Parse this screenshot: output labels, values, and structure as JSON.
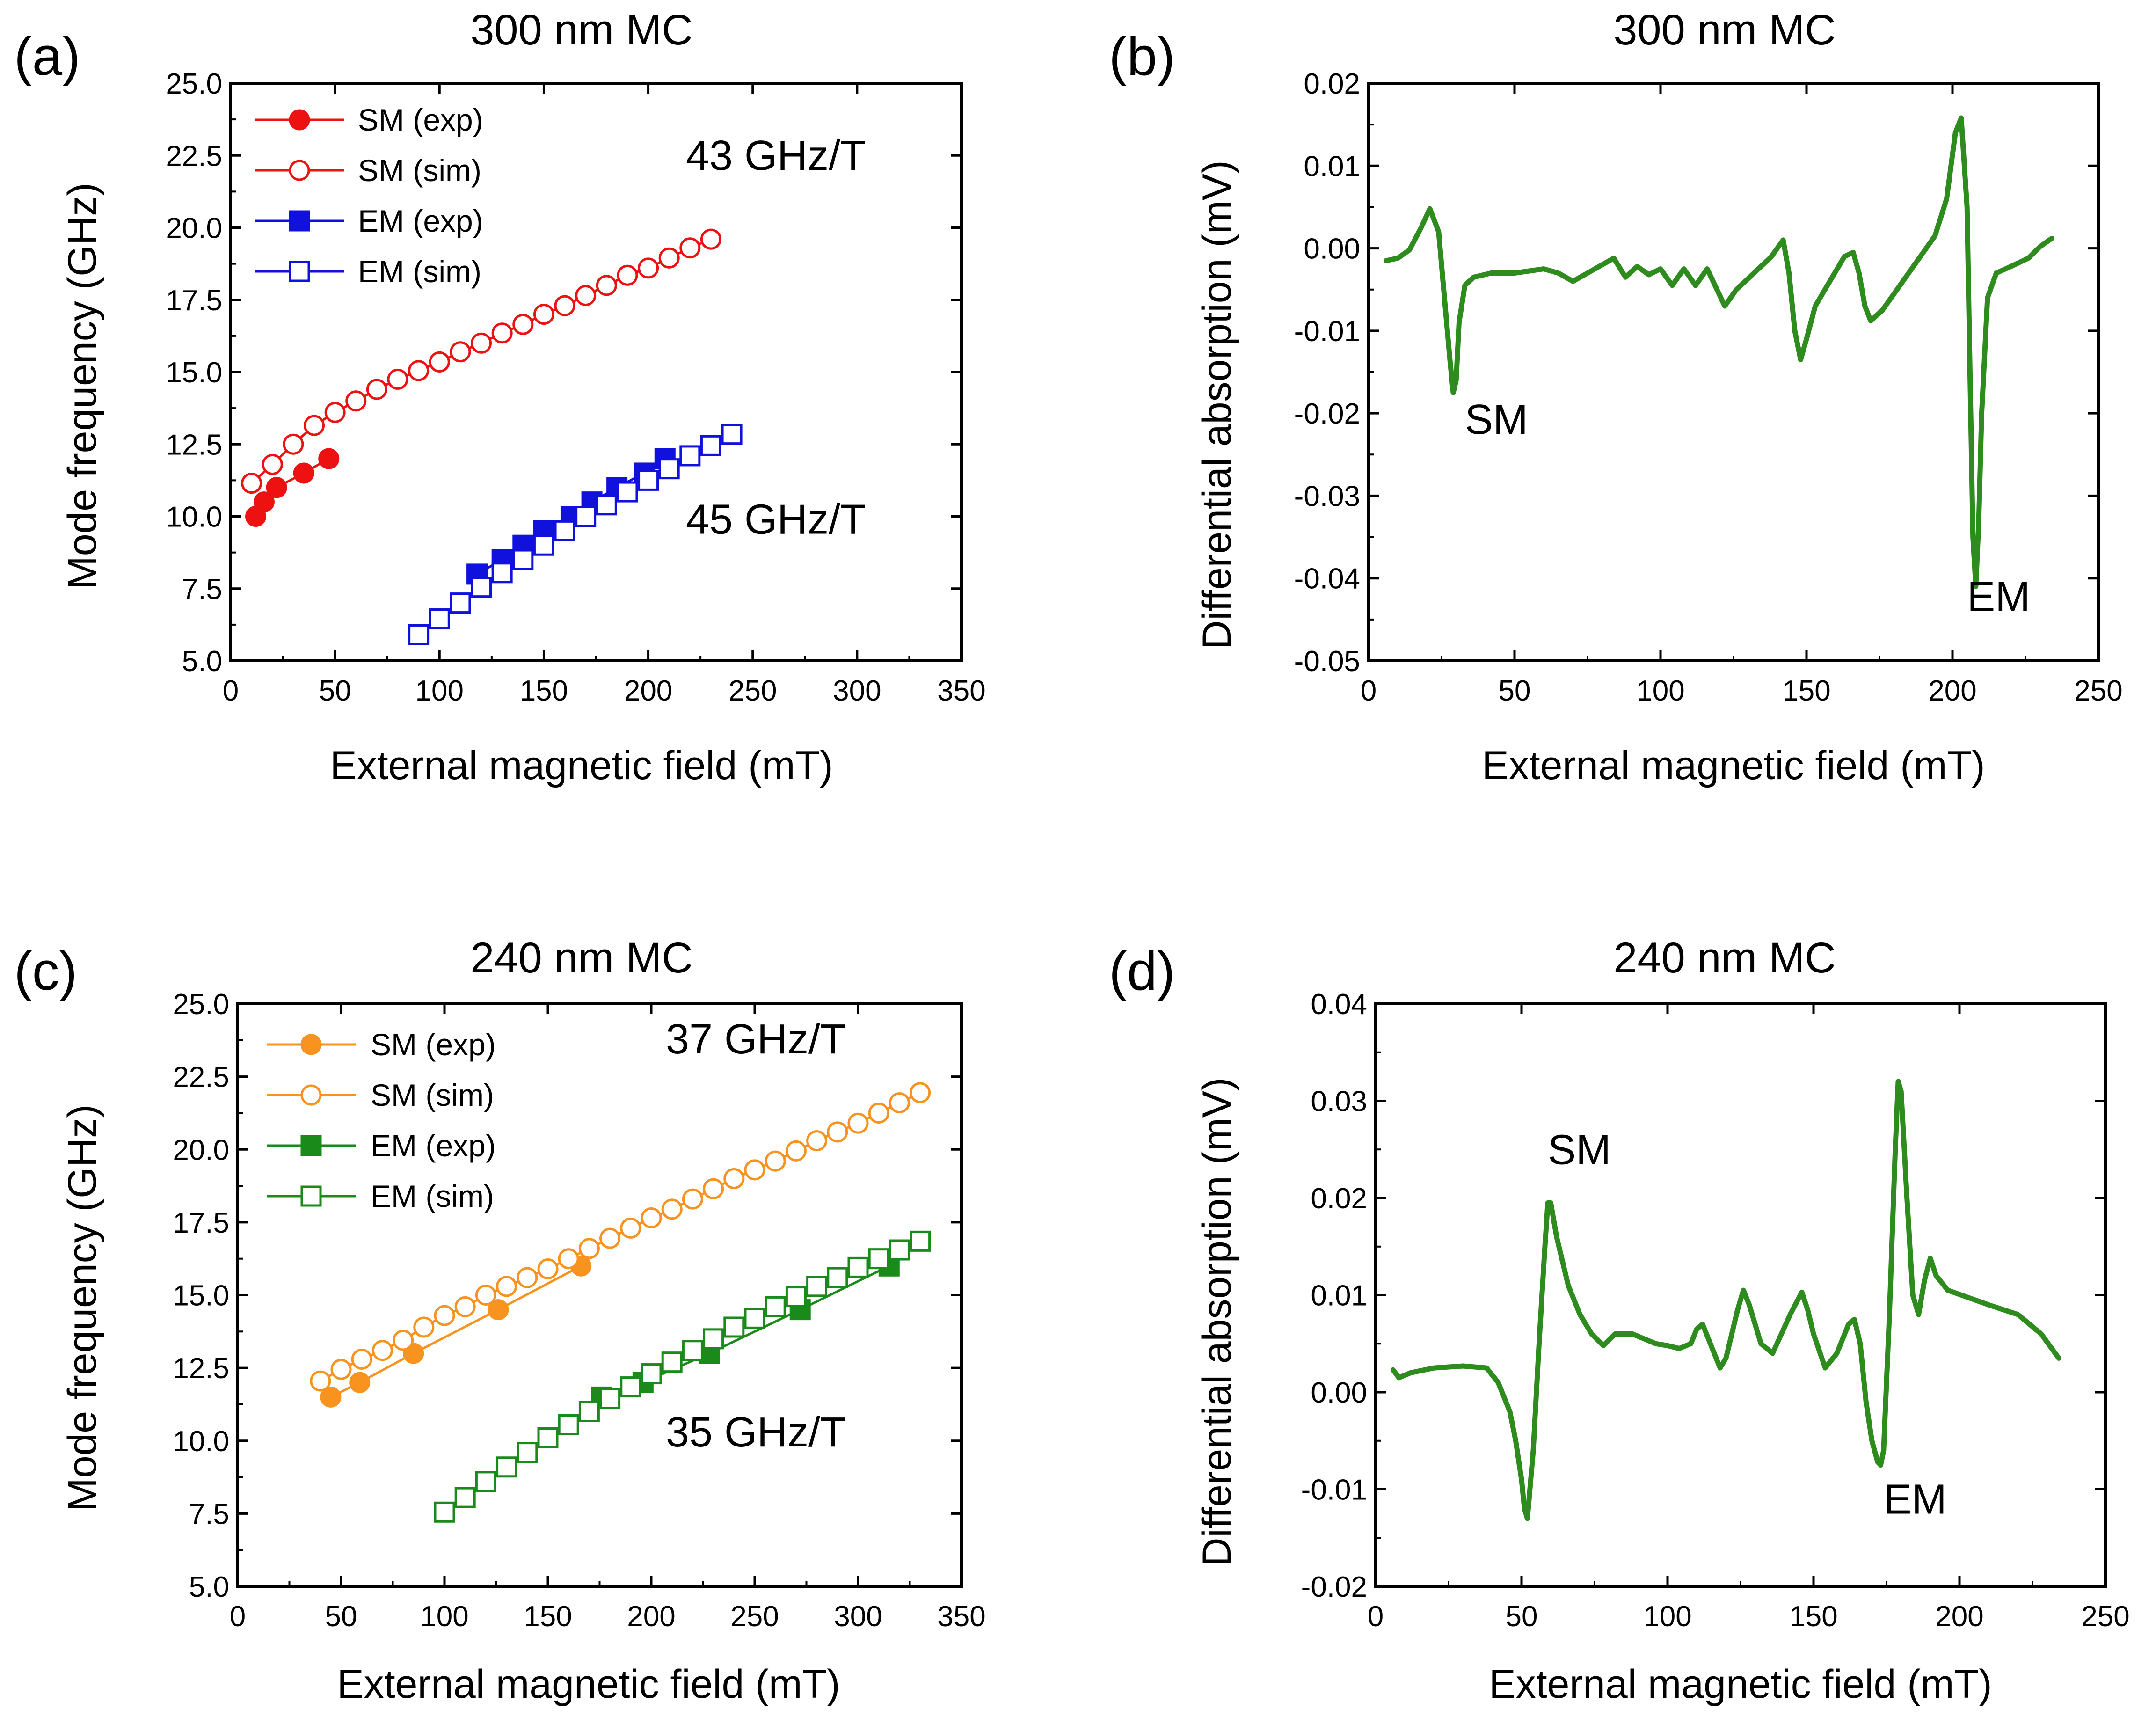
{
  "figure": {
    "colors": {
      "sm_a": "#ee1111",
      "em_a": "#1111dd",
      "sm_c": "#f7931e",
      "em_c": "#1a8a1a",
      "absorption": "#2e8b1e"
    }
  },
  "chart_data": [
    {
      "id": "a",
      "type": "scatter",
      "panel_label": "(a)",
      "title": "300 nm MC",
      "xlabel": "External magnetic field (mT)",
      "ylabel": "Mode frequency (GHz)",
      "xlim": [
        0,
        350
      ],
      "ylim": [
        5.0,
        25.0
      ],
      "xticks": [
        0,
        50,
        100,
        150,
        200,
        250,
        300,
        350
      ],
      "xtick_labels": [
        "0",
        "50",
        "100",
        "150",
        "200",
        "250",
        "300",
        "350"
      ],
      "yticks": [
        5.0,
        7.5,
        10.0,
        12.5,
        15.0,
        17.5,
        20.0,
        22.5,
        25.0
      ],
      "ytick_labels": [
        "5.0",
        "7.5",
        "10.0",
        "12.5",
        "15.0",
        "17.5",
        "20.0",
        "22.5",
        "25.0"
      ],
      "legend_position": "top-left",
      "series": [
        {
          "name": "SM (exp)",
          "color": "#ee1111",
          "marker": "circle",
          "filled": true,
          "x": [
            12,
            16,
            22,
            35,
            47
          ],
          "y": [
            10.0,
            10.5,
            11.0,
            11.5,
            12.0
          ]
        },
        {
          "name": "SM (sim)",
          "color": "#ee1111",
          "marker": "circle",
          "filled": false,
          "x": [
            10,
            20,
            30,
            40,
            50,
            60,
            70,
            80,
            90,
            100,
            110,
            120,
            130,
            140,
            150,
            160,
            170,
            180,
            190,
            200,
            210,
            220,
            230
          ],
          "y": [
            11.15,
            11.8,
            12.5,
            13.15,
            13.6,
            14.0,
            14.4,
            14.75,
            15.05,
            15.35,
            15.7,
            16.0,
            16.35,
            16.65,
            17.0,
            17.3,
            17.65,
            18.0,
            18.35,
            18.6,
            18.95,
            19.3,
            19.6
          ]
        },
        {
          "name": "EM (exp)",
          "color": "#1111dd",
          "marker": "square",
          "filled": true,
          "x": [
            118,
            130,
            140,
            150,
            163,
            173,
            185,
            198,
            208
          ],
          "y": [
            8.0,
            8.5,
            9.0,
            9.5,
            10.0,
            10.5,
            11.0,
            11.5,
            12.0
          ]
        },
        {
          "name": "EM (sim)",
          "color": "#1111dd",
          "marker": "square",
          "filled": false,
          "x": [
            90,
            100,
            110,
            120,
            130,
            140,
            150,
            160,
            170,
            180,
            190,
            200,
            210,
            220,
            230,
            240
          ],
          "y": [
            5.9,
            6.45,
            7.0,
            7.55,
            8.05,
            8.5,
            9.0,
            9.5,
            10.0,
            10.4,
            10.85,
            11.25,
            11.65,
            12.1,
            12.45,
            12.85
          ]
        }
      ],
      "annotations": [
        {
          "text": "43 GHz/T",
          "x": 218,
          "y": 22.0
        },
        {
          "text": "45 GHz/T",
          "x": 218,
          "y": 9.4
        }
      ]
    },
    {
      "id": "b",
      "type": "line",
      "panel_label": "(b)",
      "title": "300 nm MC",
      "xlabel": "External magnetic field (mT)",
      "ylabel": "Differential absorption (mV)",
      "xlim": [
        0,
        250
      ],
      "ylim": [
        -0.05,
        0.02
      ],
      "xticks": [
        0,
        50,
        100,
        150,
        200,
        250
      ],
      "xtick_labels": [
        "0",
        "50",
        "100",
        "150",
        "200",
        "250"
      ],
      "yticks": [
        -0.05,
        -0.04,
        -0.03,
        -0.02,
        -0.01,
        0.0,
        0.01,
        0.02
      ],
      "ytick_labels": [
        "-0.05",
        "-0.04",
        "-0.03",
        "-0.02",
        "-0.01",
        "0.00",
        "0.01",
        "0.02"
      ],
      "series": [
        {
          "name": "Differential absorption",
          "color": "#2e8b1e",
          "x": [
            6,
            10,
            14,
            18,
            21,
            24,
            26,
            28,
            29,
            30,
            31,
            33,
            36,
            42,
            50,
            60,
            65,
            70,
            75,
            80,
            84,
            88,
            92,
            96,
            100,
            104,
            108,
            112,
            116,
            120,
            122,
            126,
            132,
            138,
            142,
            144,
            146,
            148,
            150,
            153,
            158,
            163,
            166,
            168,
            170,
            172,
            176,
            182,
            188,
            194,
            198,
            201,
            203,
            205,
            206,
            207,
            208,
            209,
            210,
            212,
            215,
            220,
            226,
            230,
            234
          ],
          "y": [
            -0.0015,
            -0.0012,
            -0.0002,
            0.0025,
            0.0048,
            0.002,
            -0.006,
            -0.014,
            -0.0175,
            -0.016,
            -0.009,
            -0.0045,
            -0.0035,
            -0.003,
            -0.003,
            -0.0025,
            -0.003,
            -0.004,
            -0.003,
            -0.002,
            -0.0012,
            -0.0035,
            -0.0022,
            -0.0032,
            -0.0025,
            -0.0045,
            -0.0025,
            -0.0045,
            -0.0025,
            -0.0055,
            -0.007,
            -0.005,
            -0.003,
            -0.001,
            0.001,
            -0.003,
            -0.01,
            -0.0135,
            -0.011,
            -0.007,
            -0.004,
            -0.001,
            -0.0005,
            -0.003,
            -0.007,
            -0.0088,
            -0.0075,
            -0.0045,
            -0.0015,
            0.0015,
            0.006,
            0.014,
            0.0158,
            0.005,
            -0.015,
            -0.035,
            -0.041,
            -0.033,
            -0.02,
            -0.006,
            -0.003,
            -0.0022,
            -0.0012,
            0.0002,
            0.0012
          ]
        }
      ],
      "annotations": [
        {
          "text": "SM",
          "x": 33,
          "y": -0.0225
        },
        {
          "text": "EM",
          "x": 205,
          "y": -0.044
        }
      ]
    },
    {
      "id": "c",
      "type": "scatter",
      "panel_label": "(c)",
      "title": "240 nm MC",
      "xlabel": "External magnetic field (mT)",
      "ylabel": "Mode frequency (GHz)",
      "xlim": [
        0,
        350
      ],
      "ylim": [
        5.0,
        25.0
      ],
      "xticks": [
        0,
        50,
        100,
        150,
        200,
        250,
        300,
        350
      ],
      "xtick_labels": [
        "0",
        "50",
        "100",
        "150",
        "200",
        "250",
        "300",
        "350"
      ],
      "yticks": [
        5.0,
        7.5,
        10.0,
        12.5,
        15.0,
        17.5,
        20.0,
        22.5,
        25.0
      ],
      "ytick_labels": [
        "5.0",
        "7.5",
        "10.0",
        "12.5",
        "15.0",
        "17.5",
        "20.0",
        "22.5",
        "25.0"
      ],
      "legend_position": "top-left",
      "series": [
        {
          "name": "SM (exp)",
          "color": "#f7931e",
          "marker": "circle",
          "filled": true,
          "x": [
            45,
            59,
            85,
            126,
            166
          ],
          "y": [
            11.5,
            12.0,
            13.0,
            14.5,
            16.0
          ]
        },
        {
          "name": "SM (sim)",
          "color": "#f7931e",
          "marker": "circle",
          "filled": false,
          "x": [
            40,
            50,
            60,
            70,
            80,
            90,
            100,
            110,
            120,
            130,
            140,
            150,
            160,
            170,
            180,
            190,
            200,
            210,
            220,
            230,
            240,
            250,
            260,
            270,
            280,
            290,
            300,
            310,
            320,
            330
          ],
          "y": [
            12.05,
            12.45,
            12.8,
            13.1,
            13.45,
            13.9,
            14.3,
            14.6,
            15.0,
            15.3,
            15.6,
            15.9,
            16.25,
            16.6,
            16.95,
            17.3,
            17.65,
            17.95,
            18.3,
            18.65,
            19.0,
            19.3,
            19.6,
            19.95,
            20.3,
            20.6,
            20.9,
            21.25,
            21.6,
            21.95
          ]
        },
        {
          "name": "EM (exp)",
          "color": "#1a8a1a",
          "marker": "square",
          "filled": true,
          "x": [
            176,
            196,
            228,
            272,
            315
          ],
          "y": [
            11.5,
            12.0,
            13.0,
            14.5,
            16.0
          ]
        },
        {
          "name": "EM (sim)",
          "color": "#1a8a1a",
          "marker": "square",
          "filled": false,
          "x": [
            100,
            110,
            120,
            130,
            140,
            150,
            160,
            170,
            180,
            190,
            200,
            210,
            220,
            230,
            240,
            250,
            260,
            270,
            280,
            290,
            300,
            310,
            320,
            330
          ],
          "y": [
            7.55,
            8.05,
            8.6,
            9.1,
            9.6,
            10.1,
            10.55,
            11.0,
            11.45,
            11.85,
            12.3,
            12.7,
            13.1,
            13.5,
            13.9,
            14.2,
            14.6,
            14.95,
            15.3,
            15.6,
            15.95,
            16.25,
            16.55,
            16.85
          ]
        }
      ],
      "annotations": [
        {
          "text": "37 GHz/T",
          "x": 207,
          "y": 23.3
        },
        {
          "text": "35 GHz/T",
          "x": 207,
          "y": 9.8
        }
      ]
    },
    {
      "id": "d",
      "type": "line",
      "panel_label": "(d)",
      "title": "240 nm MC",
      "xlabel": "External magnetic field (mT)",
      "ylabel": "Differential absorption (mV)",
      "xlim": [
        0,
        250
      ],
      "ylim": [
        -0.02,
        0.04
      ],
      "xticks": [
        0,
        50,
        100,
        150,
        200,
        250
      ],
      "xtick_labels": [
        "0",
        "50",
        "100",
        "150",
        "200",
        "250"
      ],
      "yticks": [
        -0.02,
        -0.01,
        0.0,
        0.01,
        0.02,
        0.03,
        0.04
      ],
      "ytick_labels": [
        "-0.02",
        "-0.01",
        "0.00",
        "0.01",
        "0.02",
        "0.03",
        "0.04"
      ],
      "series": [
        {
          "name": "Differential absorption",
          "color": "#2e8b1e",
          "x": [
            6,
            8,
            12,
            20,
            30,
            38,
            42,
            46,
            48,
            50,
            51,
            52,
            54,
            56,
            58,
            59,
            60,
            62,
            66,
            70,
            74,
            78,
            82,
            88,
            92,
            96,
            100,
            104,
            108,
            110,
            112,
            116,
            118,
            120,
            124,
            126,
            128,
            132,
            136,
            142,
            146,
            148,
            150,
            154,
            158,
            162,
            164,
            166,
            168,
            170,
            172,
            173,
            174,
            176,
            178,
            179,
            180,
            182,
            184,
            186,
            188,
            190,
            192,
            196,
            210,
            220,
            228,
            234
          ],
          "y": [
            0.0023,
            0.0015,
            0.002,
            0.0025,
            0.0027,
            0.0025,
            0.001,
            -0.002,
            -0.005,
            -0.009,
            -0.012,
            -0.013,
            -0.006,
            0.005,
            0.015,
            0.0195,
            0.0195,
            0.016,
            0.011,
            0.008,
            0.006,
            0.0048,
            0.006,
            0.006,
            0.0055,
            0.005,
            0.0048,
            0.0045,
            0.005,
            0.0065,
            0.007,
            0.004,
            0.0025,
            0.0035,
            0.0085,
            0.0105,
            0.009,
            0.005,
            0.004,
            0.008,
            0.0103,
            0.0085,
            0.006,
            0.0025,
            0.004,
            0.007,
            0.0075,
            0.005,
            -0.001,
            -0.005,
            -0.0072,
            -0.0075,
            -0.006,
            0.008,
            0.025,
            0.032,
            0.031,
            0.02,
            0.01,
            0.008,
            0.0115,
            0.0138,
            0.012,
            0.0105,
            0.009,
            0.008,
            0.006,
            0.0035
          ]
        }
      ],
      "annotations": [
        {
          "text": "SM",
          "x": 59,
          "y": 0.0235
        },
        {
          "text": "EM",
          "x": 174,
          "y": -0.0125
        }
      ]
    }
  ]
}
